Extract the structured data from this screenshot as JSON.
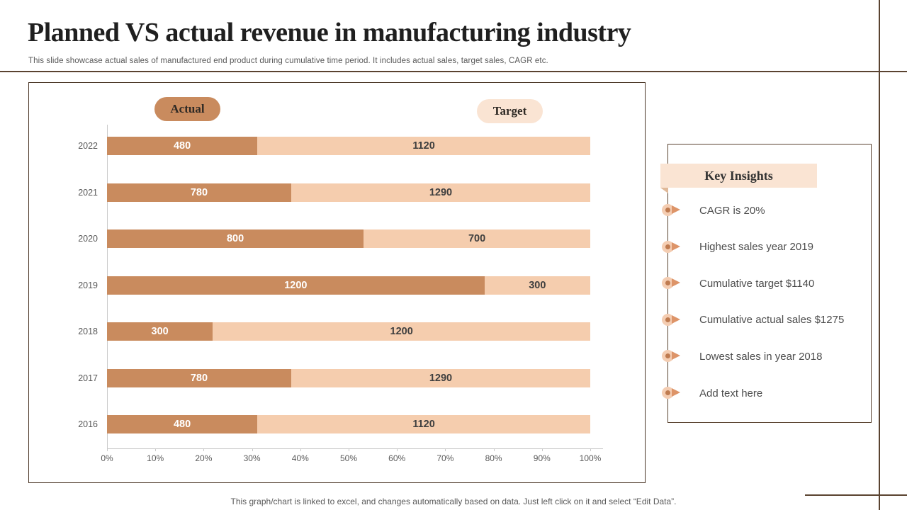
{
  "header": {
    "title": "Planned VS actual revenue in manufacturing industry",
    "subtitle": "This slide showcase actual sales of manufactured end product during cumulative time period. It includes actual sales, target sales, CAGR etc."
  },
  "legend": {
    "actual_label": "Actual",
    "target_label": "Target"
  },
  "chart_data": {
    "type": "bar",
    "variant": "horizontal-stacked-100pct",
    "title": "Planned VS actual revenue",
    "categories": [
      "2022",
      "2021",
      "2020",
      "2019",
      "2018",
      "2017",
      "2016"
    ],
    "series": [
      {
        "name": "Actual",
        "color": "#c98b5e",
        "values": [
          480,
          780,
          800,
          1200,
          300,
          780,
          480
        ]
      },
      {
        "name": "Target",
        "color": "#f5cdae",
        "values": [
          1120,
          1290,
          700,
          300,
          1200,
          1290,
          1120
        ]
      }
    ],
    "x_ticks": [
      "0%",
      "10%",
      "20%",
      "30%",
      "40%",
      "50%",
      "60%",
      "70%",
      "80%",
      "90%",
      "100%"
    ],
    "xlim": [
      0,
      100
    ],
    "grid": false,
    "legend_position": "top"
  },
  "insights": {
    "title": "Key Insights",
    "items": [
      "CAGR is 20%",
      "Highest sales year 2019",
      "Cumulative target $1140",
      "Cumulative actual sales $1275",
      "Lowest sales in year 2018",
      "Add text here"
    ]
  },
  "footer": {
    "note": "This graph/chart is linked to excel,  and changes automatically based on data. Just left click on it and select “Edit Data”."
  },
  "colors": {
    "actual": "#c98b5e",
    "target": "#f5cdae",
    "frame_brown": "#5a4330",
    "banner_bg": "#fae4d3",
    "muted_text": "#595959"
  }
}
